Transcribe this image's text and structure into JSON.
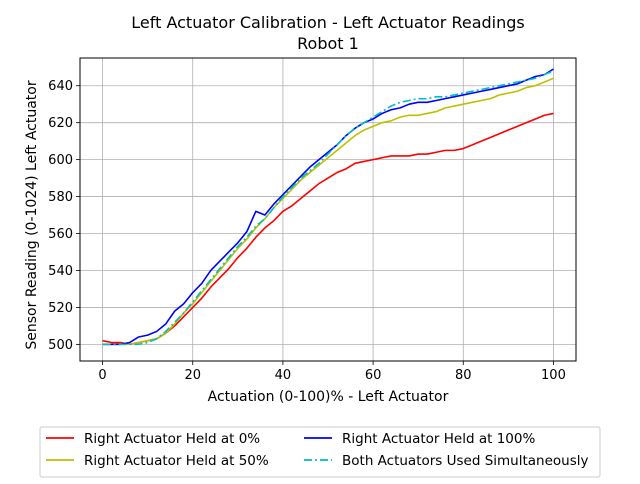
{
  "chart_data": {
    "type": "line",
    "title": "Left Actuator Calibration - Left Actuator Readings",
    "subtitle": "Robot 1",
    "xlabel": "Actuation (0-100)%  - Left Actuator",
    "ylabel": "Sensor Reading (0-1024) Left Actuator",
    "xlim": [
      -5,
      105
    ],
    "ylim": [
      491,
      655
    ],
    "x_ticks": [
      0,
      20,
      40,
      60,
      80,
      100
    ],
    "y_ticks": [
      500,
      520,
      540,
      560,
      580,
      600,
      620,
      640
    ],
    "grid": true,
    "legend_placement": "below-plot",
    "x": [
      0,
      2,
      4,
      6,
      8,
      10,
      12,
      14,
      16,
      18,
      20,
      22,
      24,
      26,
      28,
      30,
      32,
      34,
      36,
      38,
      40,
      42,
      44,
      46,
      48,
      50,
      52,
      54,
      56,
      58,
      60,
      62,
      64,
      66,
      68,
      70,
      72,
      74,
      76,
      78,
      80,
      82,
      84,
      86,
      88,
      90,
      92,
      94,
      96,
      98,
      100
    ],
    "series": [
      {
        "name": "Right Actuator Held at 0%",
        "color": "#ff0000",
        "dash": "solid",
        "values": [
          502,
          501,
          501,
          500,
          501,
          502,
          503,
          506,
          510,
          515,
          520,
          525,
          531,
          536,
          541,
          547,
          552,
          558,
          563,
          567,
          572,
          575,
          579,
          583,
          587,
          590,
          593,
          595,
          598,
          599,
          600,
          601,
          602,
          602,
          602,
          603,
          603,
          604,
          605,
          605,
          606,
          608,
          610,
          612,
          614,
          616,
          618,
          620,
          622,
          624,
          625
        ]
      },
      {
        "name": "Right Actuator Held at 50%",
        "color": "#bfbf00",
        "dash": "solid",
        "values": [
          500,
          500,
          500,
          500,
          501,
          502,
          503,
          506,
          511,
          517,
          522,
          528,
          534,
          540,
          546,
          552,
          557,
          563,
          568,
          574,
          579,
          584,
          589,
          593,
          597,
          601,
          605,
          609,
          613,
          616,
          618,
          620,
          621,
          623,
          624,
          624,
          625,
          626,
          628,
          629,
          630,
          631,
          632,
          633,
          635,
          636,
          637,
          639,
          640,
          642,
          644
        ]
      },
      {
        "name": "Right Actuator Held at 100%",
        "color": "#0000ff",
        "dash": "solid",
        "values": [
          500,
          500,
          500,
          501,
          504,
          505,
          507,
          511,
          518,
          522,
          528,
          533,
          540,
          545,
          550,
          555,
          561,
          572,
          570,
          576,
          581,
          586,
          591,
          596,
          600,
          604,
          608,
          613,
          617,
          620,
          622,
          625,
          627,
          628,
          630,
          631,
          631,
          632,
          633,
          634,
          635,
          636,
          637,
          638,
          639,
          640,
          641,
          643,
          645,
          646,
          649
        ]
      },
      {
        "name": "Both Actuators Used Simultaneously",
        "color": "#00bfbf",
        "dash": "dashdot",
        "values": [
          500,
          500,
          500,
          500,
          500,
          501,
          503,
          507,
          512,
          517,
          523,
          529,
          535,
          541,
          547,
          553,
          558,
          564,
          568,
          574,
          580,
          585,
          590,
          594,
          598,
          603,
          608,
          613,
          617,
          620,
          623,
          626,
          629,
          631,
          632,
          633,
          633,
          634,
          634,
          635,
          636,
          637,
          638,
          639,
          640,
          641,
          642,
          643,
          644,
          646,
          648
        ]
      }
    ]
  }
}
